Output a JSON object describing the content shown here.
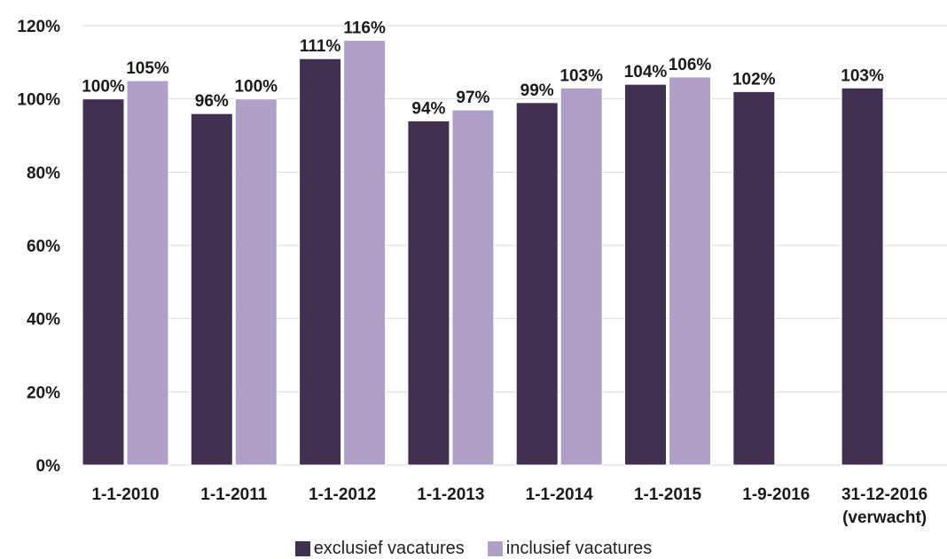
{
  "chart_data": {
    "type": "bar",
    "categories": [
      "1-1-2010",
      "1-1-2011",
      "1-1-2012",
      "1-1-2013",
      "1-1-2014",
      "1-1-2015",
      "1-9-2016",
      "31-12-2016"
    ],
    "category_sublabels": [
      "",
      "",
      "",
      "",
      "",
      "",
      "",
      "(verwacht)"
    ],
    "series": [
      {
        "name": "exclusief vacatures",
        "color": "#41304f",
        "values": [
          100,
          96,
          111,
          94,
          99,
          104,
          102,
          103
        ],
        "labels": [
          "100%",
          "96%",
          "111%",
          "94%",
          "99%",
          "104%",
          "102%",
          "103%"
        ]
      },
      {
        "name": "inclusief vacatures",
        "color": "#b0a0c8",
        "values": [
          105,
          100,
          116,
          97,
          103,
          106,
          null,
          null
        ],
        "labels": [
          "105%",
          "100%",
          "116%",
          "97%",
          "103%",
          "106%",
          "",
          ""
        ]
      }
    ],
    "y_ticks": [
      "0%",
      "20%",
      "40%",
      "60%",
      "80%",
      "100%",
      "120%"
    ],
    "y_tick_values": [
      0,
      20,
      40,
      60,
      80,
      100,
      120
    ],
    "ylim": [
      0,
      120
    ],
    "grid": true,
    "legend_position": "bottom",
    "title": "",
    "xlabel": "",
    "ylabel": ""
  }
}
